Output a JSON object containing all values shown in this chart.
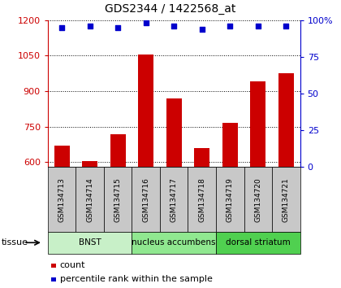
{
  "title": "GDS2344 / 1422568_at",
  "samples": [
    "GSM134713",
    "GSM134714",
    "GSM134715",
    "GSM134716",
    "GSM134717",
    "GSM134718",
    "GSM134719",
    "GSM134720",
    "GSM134721"
  ],
  "counts": [
    670,
    604,
    720,
    1055,
    870,
    660,
    765,
    940,
    975
  ],
  "percentiles": [
    95,
    96,
    95,
    98,
    96,
    94,
    96,
    96,
    96
  ],
  "ylim_left": [
    580,
    1200
  ],
  "ylim_right": [
    0,
    100
  ],
  "yticks_left": [
    600,
    750,
    900,
    1050,
    1200
  ],
  "yticks_right": [
    0,
    25,
    50,
    75,
    100
  ],
  "groups": [
    {
      "label": "BNST",
      "indices": [
        0,
        1,
        2
      ],
      "color": "#c8f0c8"
    },
    {
      "label": "nucleus accumbens",
      "indices": [
        3,
        4,
        5
      ],
      "color": "#90e890"
    },
    {
      "label": "dorsal striatum",
      "indices": [
        6,
        7,
        8
      ],
      "color": "#50d050"
    }
  ],
  "bar_color": "#cc0000",
  "dot_color": "#0000cc",
  "bar_width": 0.55,
  "left_axis_color": "#cc0000",
  "right_axis_color": "#0000cc",
  "sample_bg_color": "#c8c8c8",
  "plot_bg_color": "#ffffff"
}
